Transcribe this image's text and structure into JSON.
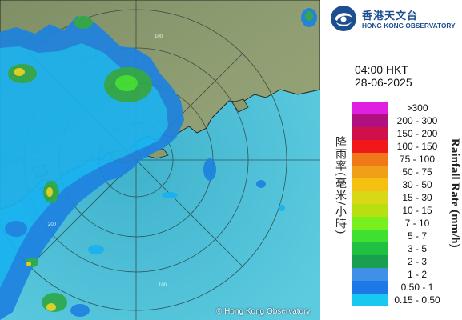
{
  "map": {
    "copyright": "© Hong Kong Observatory",
    "range_labels": [
      "100",
      "100",
      "200"
    ],
    "colors": {
      "sea": "#4fc2d8",
      "land": "#8a9a6e",
      "coast": "#1e2a22",
      "range_ring": "#2a3a3a",
      "rain_light": "#19b2f0",
      "rain_blue": "#1e82e0",
      "rain_green": "#2fa84a",
      "rain_yellow": "#e6d21e"
    }
  },
  "logo": {
    "name_cn": "香港天文台",
    "name_en": "HONG KONG OBSERVATORY",
    "icon": "hko-logo-icon"
  },
  "timestamp": {
    "time": "04:00 HKT",
    "date": "28-06-2025"
  },
  "legend": {
    "title_cn": "降雨率(毫米/小時)",
    "title_en": "Rainfall Rate (mm/h)",
    "items": [
      {
        "label": ">300",
        "color": "#e020e0"
      },
      {
        "label": "200 - 300",
        "color": "#b01080"
      },
      {
        "label": "150 - 200",
        "color": "#d0104a"
      },
      {
        "label": "100 - 150",
        "color": "#f01818"
      },
      {
        "label": "75 - 100",
        "color": "#f07818"
      },
      {
        "label": "50 - 75",
        "color": "#f0a018"
      },
      {
        "label": "30 - 50",
        "color": "#f6c010"
      },
      {
        "label": "15 - 30",
        "color": "#d8d818"
      },
      {
        "label": "10 - 15",
        "color": "#b8e010"
      },
      {
        "label": "7 - 10",
        "color": "#78f020"
      },
      {
        "label": "5 - 7",
        "color": "#40e030"
      },
      {
        "label": "3 - 5",
        "color": "#20c040"
      },
      {
        "label": "2 - 3",
        "color": "#18a050"
      },
      {
        "label": "1 - 2",
        "color": "#4090e8"
      },
      {
        "label": "0.50 - 1",
        "color": "#1e78e8"
      },
      {
        "label": "0.15 - 0.50",
        "color": "#18c8f0"
      }
    ]
  }
}
